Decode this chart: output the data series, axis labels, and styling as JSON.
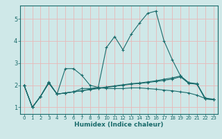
{
  "xlabel": "Humidex (Indice chaleur)",
  "xlim": [
    -0.5,
    23.5
  ],
  "ylim": [
    0.7,
    5.6
  ],
  "yticks": [
    1,
    2,
    3,
    4,
    5
  ],
  "xticks": [
    0,
    1,
    2,
    3,
    4,
    5,
    6,
    7,
    8,
    9,
    10,
    11,
    12,
    13,
    14,
    15,
    16,
    17,
    18,
    19,
    20,
    21,
    22,
    23
  ],
  "bg_color": "#cfe8e8",
  "line_color": "#1a6b6b",
  "grid_color": "#e8b8b8",
  "lines": [
    {
      "x": [
        0,
        1,
        2,
        3,
        4,
        5,
        6,
        7,
        8,
        9,
        10,
        11,
        12,
        13,
        14,
        15,
        16,
        17,
        18,
        19,
        20,
        21,
        22,
        23
      ],
      "y": [
        2.0,
        1.0,
        1.5,
        2.15,
        1.6,
        2.75,
        2.75,
        2.45,
        2.0,
        1.9,
        1.85,
        1.85,
        1.85,
        1.88,
        1.88,
        1.85,
        1.82,
        1.78,
        1.75,
        1.7,
        1.65,
        1.55,
        1.4,
        1.35
      ]
    },
    {
      "x": [
        0,
        1,
        2,
        3,
        4,
        5,
        6,
        7,
        8,
        9,
        10,
        11,
        12,
        13,
        14,
        15,
        16,
        17,
        18,
        19,
        20,
        21,
        22,
        23
      ],
      "y": [
        2.0,
        1.0,
        1.5,
        2.1,
        1.6,
        1.65,
        1.7,
        1.75,
        1.8,
        1.85,
        1.9,
        1.95,
        2.0,
        2.05,
        2.08,
        2.12,
        2.17,
        2.22,
        2.28,
        2.38,
        2.08,
        2.05,
        1.38,
        1.35
      ]
    },
    {
      "x": [
        0,
        1,
        2,
        3,
        4,
        5,
        6,
        7,
        8,
        9,
        10,
        11,
        12,
        13,
        14,
        15,
        16,
        17,
        18,
        19,
        20,
        21,
        22,
        23
      ],
      "y": [
        2.0,
        1.0,
        1.5,
        2.1,
        1.6,
        1.65,
        1.7,
        1.85,
        1.85,
        1.9,
        3.7,
        4.2,
        3.6,
        4.3,
        4.8,
        5.25,
        5.35,
        4.0,
        3.15,
        2.42,
        2.1,
        2.05,
        1.38,
        1.35
      ]
    },
    {
      "x": [
        0,
        1,
        2,
        3,
        4,
        5,
        6,
        7,
        8,
        9,
        10,
        11,
        12,
        13,
        14,
        15,
        16,
        17,
        18,
        19,
        20,
        21,
        22,
        23
      ],
      "y": [
        2.0,
        1.0,
        1.5,
        2.1,
        1.6,
        1.65,
        1.7,
        1.75,
        1.82,
        1.87,
        1.92,
        1.97,
        2.02,
        2.07,
        2.1,
        2.15,
        2.2,
        2.27,
        2.33,
        2.42,
        2.12,
        2.07,
        1.42,
        1.37
      ]
    }
  ]
}
